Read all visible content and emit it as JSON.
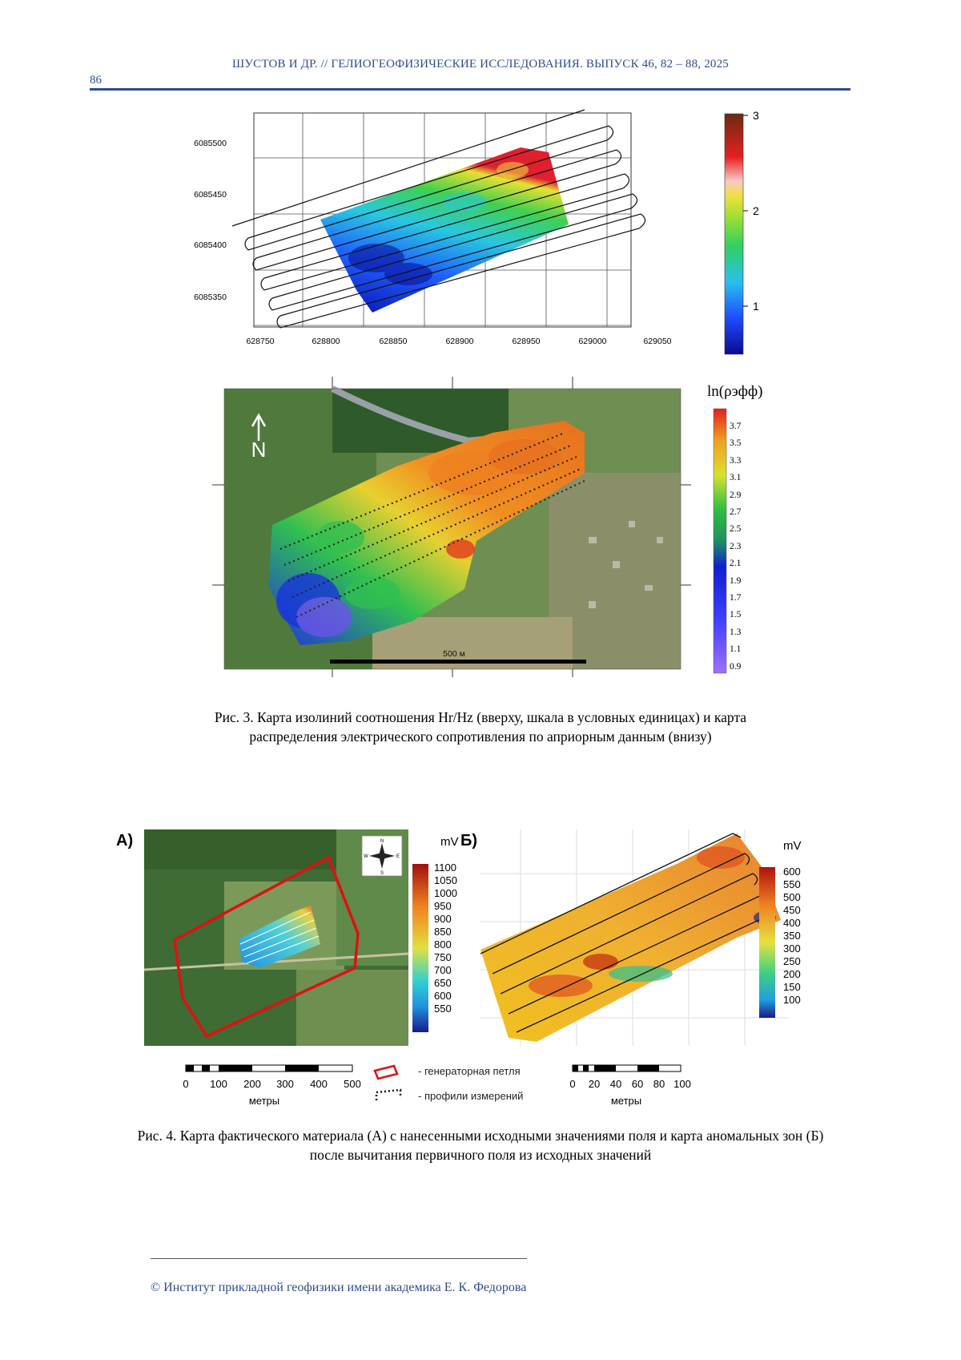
{
  "header": {
    "running_title": "ШУСТОВ И ДР. // ГЕЛИОГЕОФИЗИЧЕСКИЕ ИССЛЕДОВАНИЯ. ВЫПУСК 46, 82 – 88, 2025",
    "page_number": "86"
  },
  "figure3": {
    "top_map": {
      "y_ticks": [
        "6085500",
        "6085450",
        "6085400",
        "6085350"
      ],
      "x_ticks": [
        "628750",
        "628800",
        "628850",
        "628900",
        "628950",
        "629000",
        "629050"
      ],
      "colorbar_ticks": [
        "3",
        "2",
        "1"
      ],
      "colors": [
        "#0a0a9a",
        "#1e5cff",
        "#28c8e8",
        "#3ccf50",
        "#e8e830",
        "#f0a030",
        "#e02020",
        "#6a2a10"
      ]
    },
    "bottom_map": {
      "colorbar_title": "ln(ρэфф)",
      "colorbar_ticks": [
        "3.7",
        "3.5",
        "3.3",
        "3.1",
        "2.9",
        "2.7",
        "2.5",
        "2.3",
        "2.1",
        "1.9",
        "1.7",
        "1.5",
        "1.3",
        "1.1",
        "0.9"
      ],
      "scale_label": "500 м",
      "north_label": "N"
    },
    "caption": "Рис. 3. Карта изолиний соотношения Hr/Hz (вверху, шкала в условных единицах) и карта распределения электрического сопротивления по априорным данным (внизу)"
  },
  "figure4": {
    "panel_a": {
      "label": "А)",
      "unit": "mV",
      "colorbar_ticks": [
        "1100",
        "1050",
        "1000",
        "950",
        "900",
        "850",
        "800",
        "750",
        "700",
        "650",
        "600",
        "550"
      ],
      "scale_ticks": [
        "0",
        "100",
        "200",
        "300",
        "400",
        "500"
      ],
      "scale_unit": "метры",
      "compass": {
        "n": "N",
        "s": "S",
        "e": "E",
        "w": "W"
      }
    },
    "panel_b": {
      "label": "Б)",
      "unit": "mV",
      "colorbar_ticks": [
        "600",
        "550",
        "500",
        "450",
        "400",
        "350",
        "300",
        "250",
        "200",
        "150",
        "100"
      ],
      "scale_ticks": [
        "0",
        "20",
        "40",
        "60",
        "80",
        "100"
      ],
      "scale_unit": "метры"
    },
    "legend": {
      "loop": "- генераторная петля",
      "profiles": "- профили измерений"
    },
    "caption": "Рис. 4. Карта фактического материала (А) с нанесенными исходными значениями поля и карта аномальных зон (Б) после вычитания первичного поля из исходных значений"
  },
  "footer": {
    "copyright": "© Институт прикладной геофизики имени академика Е. К. Федорова"
  }
}
